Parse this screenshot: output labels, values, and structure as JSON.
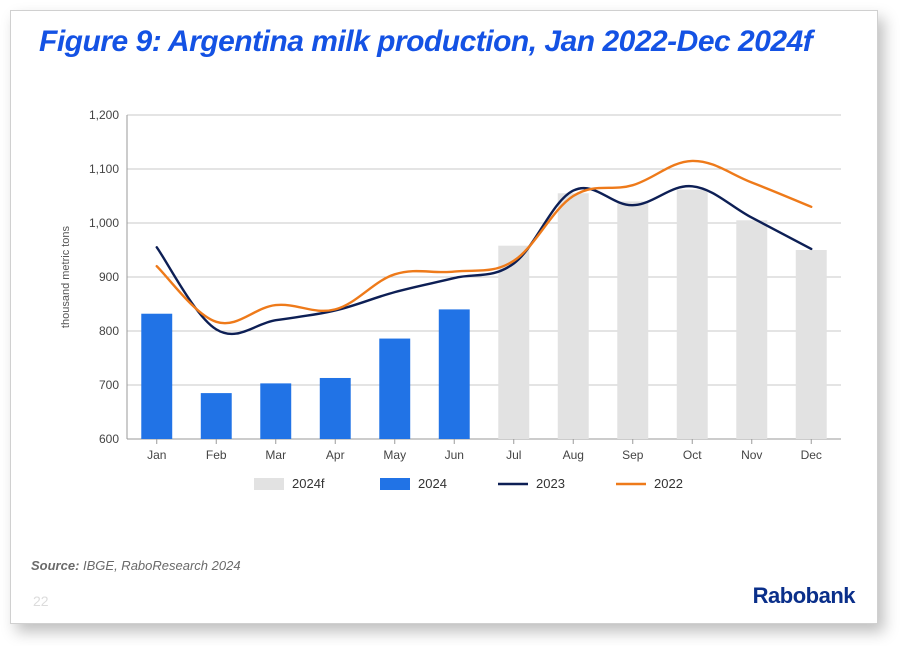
{
  "title": "Figure 9: Argentina milk production, Jan 2022-Dec 2024f",
  "title_color": "#1452e4",
  "title_fontsize": 30,
  "source_prefix": "Source:",
  "source_text": " IBGE, RaboResearch 2024",
  "source_fontsize": 13,
  "page_number": "22",
  "brand": "Rabobank",
  "chart": {
    "type": "bar+line",
    "background_color": "#ffffff",
    "plot_border_color": "#9a9a9a",
    "grid_color": "#c8c8c8",
    "categories": [
      "Jan",
      "Feb",
      "Mar",
      "Apr",
      "May",
      "Jun",
      "Jul",
      "Aug",
      "Sep",
      "Oct",
      "Nov",
      "Dec"
    ],
    "y_axis": {
      "label": "thousand metric tons",
      "label_fontsize": 11,
      "label_color": "#555555",
      "min": 600,
      "max": 1200,
      "tick_step": 100,
      "tick_fontsize": 12,
      "tick_color": "#444444"
    },
    "x_axis": {
      "tick_fontsize": 12,
      "tick_color": "#444444"
    },
    "bar_width_ratio": 0.52,
    "series": {
      "bars_2024f": {
        "label": "2024f",
        "color": "#e2e2e2",
        "values": [
          null,
          null,
          null,
          null,
          null,
          null,
          958,
          1055,
          1040,
          1062,
          1005,
          950
        ]
      },
      "bars_2024": {
        "label": "2024",
        "color": "#2173e6",
        "values": [
          832,
          685,
          703,
          713,
          786,
          840,
          null,
          null,
          null,
          null,
          null,
          null
        ]
      },
      "line_2023": {
        "label": "2023",
        "color": "#0d1f55",
        "line_width": 2.4,
        "values": [
          955,
          803,
          820,
          838,
          872,
          898,
          925,
          1060,
          1033,
          1068,
          1010,
          952
        ]
      },
      "line_2022": {
        "label": "2022",
        "color": "#ee7a1a",
        "line_width": 2.4,
        "values": [
          920,
          817,
          848,
          840,
          905,
          910,
          930,
          1050,
          1070,
          1115,
          1075,
          1030
        ]
      }
    },
    "legend": {
      "fontsize": 13,
      "text_color": "#333333",
      "items": [
        "2024f",
        "2024",
        "2023",
        "2022"
      ]
    }
  }
}
